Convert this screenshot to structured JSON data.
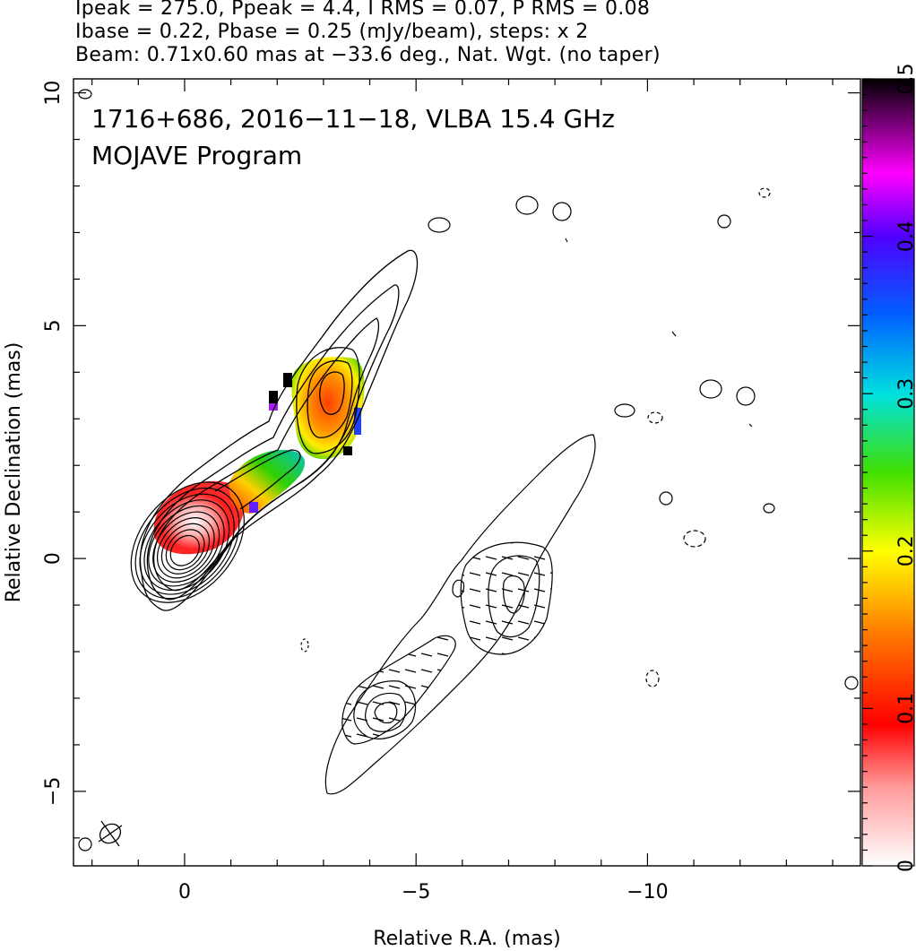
{
  "header": {
    "line1": "Ipeak = 275.0, Ppeak = 4.4, I RMS = 0.07, P RMS = 0.08",
    "line2": "Ibase = 0.22, Pbase = 0.25 (mJy/beam), steps: x 2",
    "line3": "Beam: 0.71x0.60 mas at −33.6 deg., Nat. Wgt. (no taper)"
  },
  "chart_data": {
    "type": "heatmap",
    "title": "1716+686, 2016−11−18, VLBA 15.4 GHz",
    "subtitle": "MOJAVE Program",
    "xlabel": "Relative R.A. (mas)",
    "ylabel": "Relative Declination (mas)",
    "xlim": [
      2.4,
      -14.6
    ],
    "ylim": [
      -6.6,
      10.3
    ],
    "x_ticks": [
      0,
      -5,
      -10
    ],
    "x_tick_labels": [
      "0",
      "−5",
      "−10"
    ],
    "y_ticks": [
      -5,
      0,
      5,
      10
    ],
    "y_tick_labels": [
      "−5",
      "0",
      "5",
      "10"
    ],
    "colorbar": {
      "range": [
        0,
        0.5
      ],
      "ticks": [
        0,
        0.1,
        0.2,
        0.3,
        0.4,
        0.5
      ],
      "tick_labels": [
        "0",
        "0.1",
        "0.2",
        "0.3",
        "0.4",
        "0.5"
      ],
      "colors": [
        "#ffffff",
        "#ff4040",
        "#ff0000",
        "#ff8000",
        "#ffff00",
        "#40e000",
        "#00e0e0",
        "#0040ff",
        "#8000ff",
        "#ff00ff",
        "#000000"
      ]
    },
    "fractional_polarization_regions": [
      {
        "center": [
          -0.6,
          0.9
        ],
        "value": 0.08
      },
      {
        "center": [
          -2.0,
          1.7
        ],
        "value": 0.2
      },
      {
        "center": [
          -3.2,
          3.5
        ],
        "value": 0.12
      }
    ],
    "main_jet_contours": {
      "center": [
        0.0,
        0.15
      ],
      "angle_deg": -52,
      "count": 10
    },
    "secondary_component_contours": {
      "center": [
        -4.3,
        -3.4
      ],
      "count": 5
    },
    "beam": {
      "major_mas": 0.71,
      "minor_mas": 0.6,
      "pa_deg": -33.6
    }
  }
}
